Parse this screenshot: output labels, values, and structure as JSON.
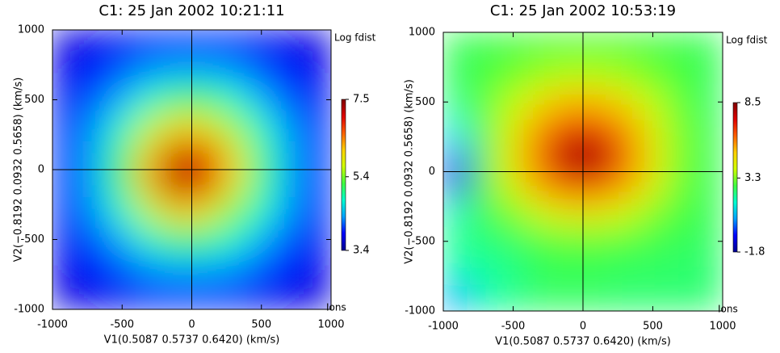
{
  "chart_data": [
    {
      "type": "heatmap",
      "title": "C1: 25 Jan 2002 10:21:11",
      "x_label": "V1(0.5087 0.5737 0.6420) (km/s)",
      "y_label": "V2(−0.8192 0.0932 0.5658) (km/s)",
      "colorbar_label": "Log fdist",
      "annotation": "Ions",
      "x": [
        -900,
        -700,
        -500,
        -300,
        -100,
        100,
        300,
        500,
        700,
        900
      ],
      "y": [
        900,
        700,
        500,
        300,
        100,
        -100,
        -300,
        -500,
        -700,
        -900
      ],
      "z": [
        [
          3.7,
          3.8,
          3.8,
          3.9,
          3.9,
          3.9,
          3.9,
          3.8,
          3.8,
          3.7
        ],
        [
          3.8,
          3.9,
          4.1,
          4.3,
          4.4,
          4.4,
          4.3,
          4.1,
          3.9,
          3.8
        ],
        [
          3.8,
          4.1,
          4.4,
          4.8,
          5.1,
          5.1,
          4.8,
          4.4,
          4.1,
          3.8
        ],
        [
          3.9,
          4.3,
          4.8,
          5.6,
          6.1,
          6.0,
          5.5,
          4.8,
          4.3,
          3.9
        ],
        [
          3.9,
          4.4,
          5.1,
          6.2,
          7.2,
          6.9,
          6.0,
          5.0,
          4.4,
          3.9
        ],
        [
          3.9,
          4.4,
          5.1,
          6.3,
          7.3,
          7.0,
          6.0,
          5.0,
          4.4,
          3.9
        ],
        [
          3.9,
          4.3,
          4.8,
          5.6,
          6.2,
          6.0,
          5.4,
          4.8,
          4.3,
          3.9
        ],
        [
          3.8,
          4.1,
          4.4,
          4.8,
          5.1,
          5.0,
          4.8,
          4.4,
          4.1,
          3.8
        ],
        [
          3.8,
          3.9,
          4.1,
          4.3,
          4.4,
          4.4,
          4.3,
          4.1,
          3.9,
          3.8
        ],
        [
          3.7,
          3.8,
          3.8,
          3.9,
          3.9,
          3.9,
          3.9,
          3.8,
          3.8,
          3.7
        ]
      ],
      "xlim": [
        -1000,
        1000
      ],
      "ylim": [
        -1000,
        1000
      ],
      "xticks": [
        -1000,
        -500,
        0,
        500,
        1000
      ],
      "yticks": [
        -1000,
        -500,
        0,
        500,
        1000
      ],
      "zlim": [
        3.4,
        7.5
      ],
      "zticks": [
        3.4,
        5.4,
        7.5
      ],
      "colormap": [
        "#00008f",
        "#0000ff",
        "#00a0ff",
        "#00ffd0",
        "#40ff40",
        "#d0ff00",
        "#ffd000",
        "#ff6000",
        "#e00000",
        "#800000"
      ]
    },
    {
      "type": "heatmap",
      "title": "C1: 25 Jan 2002 10:53:19",
      "x_label": "V1(0.5087 0.5737 0.6420) (km/s)",
      "y_label": "V2(−0.8192 0.0932 0.5658) (km/s)",
      "colorbar_label": "Log fdist",
      "annotation": "Ions",
      "x": [
        -900,
        -700,
        -500,
        -300,
        -100,
        100,
        300,
        500,
        700,
        900
      ],
      "y": [
        900,
        700,
        500,
        300,
        100,
        -100,
        -300,
        -500,
        -700,
        -900
      ],
      "z": [
        [
          2.6,
          2.7,
          2.8,
          2.9,
          2.9,
          2.9,
          2.9,
          2.8,
          2.7,
          2.6
        ],
        [
          2.5,
          2.8,
          3.1,
          3.5,
          3.7,
          3.7,
          3.5,
          3.1,
          2.8,
          2.6
        ],
        [
          2.3,
          3.0,
          3.8,
          4.7,
          5.3,
          5.3,
          4.7,
          3.8,
          3.0,
          2.5
        ],
        [
          1.5,
          3.1,
          4.3,
          5.8,
          7.0,
          7.0,
          5.8,
          4.3,
          3.2,
          2.6
        ],
        [
          0.0,
          3.1,
          4.5,
          6.4,
          8.2,
          8.2,
          6.4,
          4.5,
          3.2,
          2.6
        ],
        [
          -1.0,
          3.0,
          4.3,
          5.6,
          6.6,
          6.6,
          5.6,
          4.3,
          3.1,
          2.6
        ],
        [
          1.8,
          2.7,
          3.2,
          4.0,
          4.5,
          4.5,
          4.0,
          3.3,
          2.8,
          2.6
        ],
        [
          2.2,
          2.3,
          2.5,
          2.8,
          3.0,
          3.0,
          2.9,
          2.7,
          2.6,
          2.5
        ],
        [
          1.8,
          2.0,
          2.2,
          2.6,
          2.6,
          2.6,
          2.5,
          2.5,
          2.4,
          2.4
        ],
        [
          0.5,
          1.9,
          2.2,
          2.5,
          2.5,
          2.5,
          2.4,
          2.4,
          2.4,
          2.4
        ]
      ],
      "xlim": [
        -1000,
        1000
      ],
      "ylim": [
        -1000,
        1000
      ],
      "xticks": [
        -1000,
        -500,
        0,
        500,
        1000
      ],
      "yticks": [
        -1000,
        -500,
        0,
        500,
        1000
      ],
      "zlim": [
        -1.8,
        8.5
      ],
      "zticks": [
        -1.8,
        3.3,
        8.5
      ],
      "colormap": [
        "#00008f",
        "#0000ff",
        "#00a0ff",
        "#00ffd0",
        "#40ff40",
        "#d0ff00",
        "#ffd000",
        "#ff6000",
        "#e00000",
        "#800000"
      ]
    }
  ]
}
